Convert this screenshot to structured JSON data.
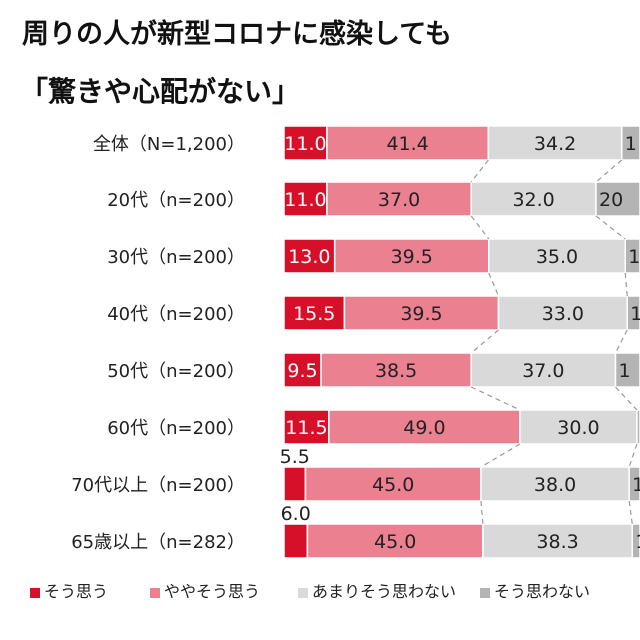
{
  "title_line1": "周りの人が新型コロナに感染しても",
  "title_line2": "「驚きや心配がない」",
  "chart_data": {
    "type": "bar",
    "orientation": "horizontal",
    "stacked": "100%",
    "categories": [
      "全体（N=1,200）",
      "20代（n=200）",
      "30代（n=200）",
      "40代（n=200）",
      "50代（n=200）",
      "60代（n=200）",
      "70代以上（n=200）",
      "65歳以上（n=282）"
    ],
    "series": [
      {
        "name": "そう思う",
        "color": "#d7102a",
        "values": [
          11.0,
          11.0,
          13.0,
          15.5,
          9.5,
          11.5,
          5.5,
          6.0
        ],
        "labels": [
          "11.0",
          "11.0",
          "13.0",
          "15.5",
          "9.5",
          "11.5",
          "5.5",
          "6.0"
        ]
      },
      {
        "name": "ややそう思う",
        "color": "#eb8090",
        "values": [
          41.4,
          37.0,
          39.5,
          39.5,
          38.5,
          49.0,
          45.0,
          45.0
        ],
        "labels": [
          "41.4",
          "37.0",
          "39.5",
          "39.5",
          "38.5",
          "49.0",
          "45.0",
          "45.0"
        ]
      },
      {
        "name": "あまりそう思わない",
        "color": "#d9d9d9",
        "values": [
          34.2,
          32.0,
          35.0,
          33.0,
          37.0,
          30.0,
          38.0,
          38.3
        ],
        "labels": [
          "34.2",
          "32.0",
          "35.0",
          "33.0",
          "37.0",
          "30.0",
          "38.0",
          "38.3"
        ]
      },
      {
        "name": "そう思わない",
        "color": "#b4b4b4",
        "labels": [
          "1",
          "20",
          "1",
          "1",
          "1",
          "",
          "1",
          "1"
        ]
      }
    ],
    "legend": "bottom"
  }
}
